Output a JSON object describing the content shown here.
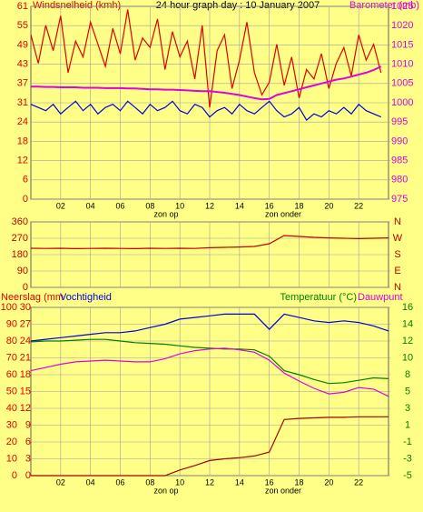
{
  "chart_data": [
    {
      "type": "line",
      "title": "24 hour graph day : 10 January 2007",
      "y_label": "Windsnelheid (kmh)",
      "y2_label": "Barometer (mb)",
      "annotations": [
        "zon op",
        "zon onder"
      ],
      "x": [
        0,
        0.5,
        1,
        1.5,
        2,
        2.5,
        3,
        3.5,
        4,
        4.5,
        5,
        5.5,
        6,
        6.5,
        7,
        7.5,
        8,
        8.5,
        9,
        9.5,
        10,
        10.5,
        11,
        11.5,
        12,
        12.5,
        13,
        13.5,
        14,
        14.5,
        15,
        15.5,
        16,
        16.5,
        17,
        17.5,
        18,
        18.5,
        19,
        19.5,
        20,
        20.5,
        21,
        21.5,
        22,
        22.5,
        23,
        23.5
      ],
      "xlim": [
        0,
        24
      ],
      "xticks": [
        {
          "value": 2,
          "label": "02"
        },
        {
          "value": 4,
          "label": "04"
        },
        {
          "value": 6,
          "label": "06"
        },
        {
          "value": 8,
          "label": "08"
        },
        {
          "value": 10,
          "label": "10"
        },
        {
          "value": 12,
          "label": "12"
        },
        {
          "value": 14,
          "label": "14"
        },
        {
          "value": 16,
          "label": "16"
        },
        {
          "value": 18,
          "label": "18"
        },
        {
          "value": 20,
          "label": "20"
        },
        {
          "value": 22,
          "label": "22"
        }
      ],
      "ylim": [
        0,
        61
      ],
      "yticks": [
        0,
        {
          "value": 6.1,
          "label": "6"
        },
        {
          "value": 12.2,
          "label": "12"
        },
        {
          "value": 18.3,
          "label": "18"
        },
        {
          "value": 24.4,
          "label": "24"
        },
        {
          "value": 30.5,
          "label": "31"
        },
        {
          "value": 36.6,
          "label": "37"
        },
        {
          "value": 42.7,
          "label": "43"
        },
        {
          "value": 48.8,
          "label": "49"
        },
        {
          "value": 54.9,
          "label": "55"
        },
        61
      ],
      "y2lim": [
        975,
        1025
      ],
      "y2ticks": [
        975,
        980,
        985,
        990,
        995,
        1000,
        1005,
        1010,
        1015,
        1020,
        1025
      ],
      "grid": true,
      "series": [
        {
          "color": "#e00000",
          "values": [
            52,
            43,
            55,
            47,
            58,
            40,
            50,
            45,
            56,
            49,
            42,
            54,
            46,
            60,
            44,
            51,
            48,
            57,
            41,
            53,
            45,
            50,
            38,
            55,
            29,
            47,
            52,
            35,
            44,
            56,
            40,
            33,
            37,
            49,
            36,
            45,
            32,
            41,
            38,
            46,
            35,
            43,
            48,
            39,
            52,
            44,
            49,
            40
          ]
        },
        {
          "color": "#0000e0",
          "values": [
            30,
            29,
            28,
            30,
            27,
            29,
            31,
            28,
            30,
            27,
            29,
            30,
            28,
            31,
            29,
            27,
            30,
            28,
            29,
            31,
            28,
            27,
            30,
            29,
            26,
            28,
            29,
            27,
            30,
            28,
            27,
            29,
            31,
            28,
            26,
            27,
            29,
            25,
            27,
            26,
            28,
            27,
            29,
            27,
            30,
            28,
            27,
            26
          ]
        },
        {
          "color": "#e000e0",
          "axis": "y2",
          "values": [
            1004.2,
            1004.2,
            1004.1,
            1004.1,
            1004.0,
            1004.0,
            1004.0,
            1003.9,
            1003.9,
            1003.9,
            1003.8,
            1003.8,
            1003.8,
            1003.7,
            1003.7,
            1003.6,
            1003.5,
            1003.5,
            1003.4,
            1003.4,
            1003.3,
            1003.2,
            1003.1,
            1003.0,
            1003.0,
            1002.8,
            1002.6,
            1002.3,
            1002.0,
            1001.6,
            1001.2,
            1000.9,
            1001.0,
            1002.0,
            1002.5,
            1003.0,
            1003.5,
            1004.0,
            1004.5,
            1005.0,
            1005.5,
            1006.0,
            1006.3,
            1006.8,
            1007.3,
            1007.8,
            1008.5,
            1009.4
          ]
        }
      ]
    },
    {
      "type": "line",
      "x": [
        0,
        1,
        2,
        3,
        4,
        5,
        6,
        7,
        8,
        9,
        10,
        11,
        12,
        13,
        14,
        15,
        16,
        17,
        18,
        19,
        20,
        21,
        22,
        23,
        24
      ],
      "xlim": [
        0,
        24
      ],
      "xticks": [
        2,
        4,
        6,
        8,
        10,
        12,
        14,
        16,
        18,
        20,
        22
      ],
      "ylim": [
        0,
        360
      ],
      "yticks": [
        0,
        90,
        180,
        270,
        360
      ],
      "y2lim": [
        0,
        360
      ],
      "y2ticks": [
        {
          "value": 360,
          "label": "N"
        },
        {
          "value": 270,
          "label": "W"
        },
        {
          "value": 180,
          "label": "S"
        },
        {
          "value": 90,
          "label": "E"
        },
        {
          "value": 0,
          "label": "N"
        }
      ],
      "grid": true,
      "series": [
        {
          "color": "#c00000",
          "values": [
            215,
            214,
            215,
            213,
            214,
            215,
            214,
            213,
            215,
            214,
            215,
            214,
            218,
            220,
            222,
            225,
            240,
            285,
            280,
            275,
            272,
            270,
            268,
            270,
            272
          ]
        }
      ]
    },
    {
      "type": "line",
      "y3_label": "Neerslag (mm",
      "y_label": "Vochtigheid",
      "y2_label": "Temperatuur (°C)",
      "y2b_label": "Dauwpunt",
      "annotations": [
        "zon op",
        "zon onder"
      ],
      "x": [
        0,
        1,
        2,
        3,
        4,
        5,
        6,
        7,
        8,
        9,
        10,
        11,
        12,
        13,
        14,
        15,
        16,
        17,
        18,
        19,
        20,
        21,
        22,
        23,
        24
      ],
      "xlim": [
        0,
        24
      ],
      "xticks": [
        {
          "value": 2,
          "label": "02"
        },
        {
          "value": 4,
          "label": "04"
        },
        {
          "value": 6,
          "label": "06"
        },
        {
          "value": 8,
          "label": "08"
        },
        {
          "value": 10,
          "label": "10"
        },
        {
          "value": 12,
          "label": "12"
        },
        {
          "value": 14,
          "label": "14"
        },
        {
          "value": 16,
          "label": "16"
        },
        {
          "value": 18,
          "label": "18"
        },
        {
          "value": 20,
          "label": "20"
        },
        {
          "value": 22,
          "label": "22"
        }
      ],
      "ylim": [
        0,
        100
      ],
      "yticks": [
        0,
        10,
        20,
        30,
        40,
        50,
        60,
        70,
        80,
        90,
        100
      ],
      "y3lim": [
        0,
        30
      ],
      "y3ticks": [
        0,
        3,
        6,
        9,
        12,
        15,
        18,
        21,
        24,
        27,
        30
      ],
      "y2lim": [
        -5,
        16
      ],
      "y2ticks": [
        -5,
        {
          "value": -2.9,
          "label": "-3"
        },
        {
          "value": -0.8,
          "label": "-1"
        },
        {
          "value": 1.3,
          "label": "1"
        },
        {
          "value": 3.4,
          "label": "3"
        },
        {
          "value": 5.5,
          "label": "5"
        },
        {
          "value": 7.6,
          "label": "8"
        },
        {
          "value": 9.7,
          "label": "10"
        },
        {
          "value": 11.8,
          "label": "12"
        },
        {
          "value": 13.9,
          "label": "14"
        },
        16
      ],
      "grid": true,
      "series": [
        {
          "color": "#0000e0",
          "values": [
            80,
            81,
            82,
            83,
            84,
            85,
            85,
            86,
            88,
            90,
            93,
            94,
            95,
            96,
            96,
            96,
            87,
            96,
            94,
            92,
            91,
            92,
            91,
            89,
            86
          ]
        },
        {
          "color": "#008000",
          "axis": "y2",
          "values": [
            11.7,
            11.8,
            11.8,
            11.9,
            12.0,
            12.0,
            11.8,
            11.6,
            11.5,
            11.4,
            11.2,
            11.0,
            10.9,
            10.8,
            10.8,
            10.7,
            9.9,
            8.1,
            7.6,
            7.0,
            6.5,
            6.6,
            6.9,
            7.2,
            7.1
          ]
        },
        {
          "color": "#e000e0",
          "axis": "y2",
          "values": [
            8.1,
            8.5,
            8.9,
            9.2,
            9.3,
            9.4,
            9.3,
            9.2,
            9.2,
            9.6,
            10.2,
            10.6,
            10.8,
            10.9,
            10.7,
            10.4,
            9.4,
            7.8,
            6.8,
            5.9,
            5.2,
            5.4,
            6.0,
            5.8,
            4.9
          ]
        },
        {
          "color": "#a00000",
          "axis": "y3",
          "values": [
            0,
            0,
            0,
            0,
            0,
            0,
            0,
            0,
            0,
            0,
            1.0,
            1.8,
            2.7,
            3.0,
            3.2,
            3.5,
            4.2,
            10.0,
            10.2,
            10.3,
            10.4,
            10.4,
            10.5,
            10.5,
            10.5
          ]
        }
      ]
    }
  ]
}
